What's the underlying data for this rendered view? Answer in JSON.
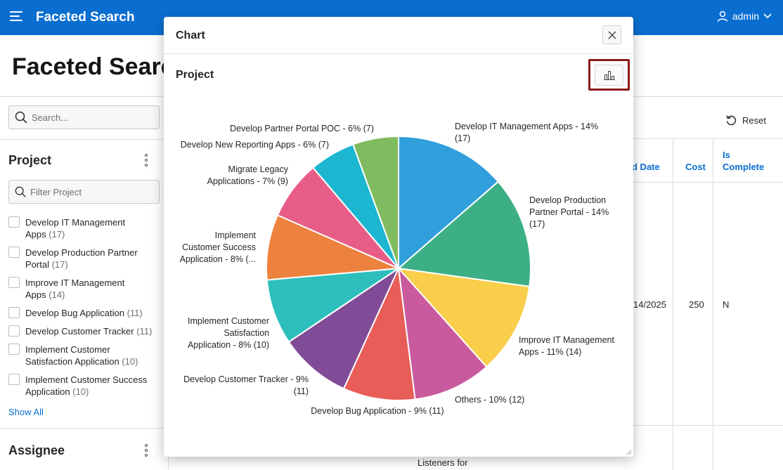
{
  "header": {
    "app_title": "Faceted Search",
    "user": "admin"
  },
  "page": {
    "title": "Faceted Search"
  },
  "search": {
    "placeholder": "Search..."
  },
  "facets": {
    "project": {
      "title": "Project",
      "filter_placeholder": "Filter Project",
      "items": [
        {
          "label": "Develop IT Management Apps",
          "count": "(17)"
        },
        {
          "label": "Develop Production Partner Portal",
          "count": "(17)"
        },
        {
          "label": "Improve IT Management Apps",
          "count": "(14)"
        },
        {
          "label": "Develop Bug Application",
          "count": "(11)"
        },
        {
          "label": "Develop Customer Tracker",
          "count": "(11)"
        },
        {
          "label": "Implement Customer Satisfaction Application",
          "count": "(10)"
        },
        {
          "label": "Implement Customer Success Application",
          "count": "(10)"
        }
      ],
      "show_all": "Show All"
    },
    "assignee": {
      "title": "Assignee"
    }
  },
  "report": {
    "reset_label": "Reset",
    "columns": {
      "end_date_partial": "d Date",
      "cost": "Cost",
      "is_complete_line1": "Is",
      "is_complete_line2": "Complete"
    },
    "row": {
      "end_date_partial": "14/2025",
      "cost": "250",
      "is_complete": "N"
    },
    "bottom_cell_text": "Listeners for"
  },
  "dialog": {
    "title": "Chart",
    "region_title": "Project"
  },
  "icons": {
    "menu": "hamburger-icon",
    "user": "user-icon",
    "chevron": "chevron-down-icon",
    "search": "search-icon",
    "kebab": "kebab-icon",
    "close": "close-icon",
    "chart_type": "bar-chart-icon",
    "reset": "reset-icon"
  },
  "colors": {
    "header": "#0a6ed1",
    "link": "#0a6ed1",
    "highlight_border": "#8b1a1a"
  },
  "chart_data": {
    "type": "pie",
    "slices": [
      {
        "label_lines": [
          "Develop IT Management Apps - 14%",
          "(17)"
        ],
        "value": 17,
        "color": "#309fdb"
      },
      {
        "label_lines": [
          "Develop Production",
          "Partner Portal - 14%",
          "(17)"
        ],
        "value": 17,
        "color": "#3caf85"
      },
      {
        "label_lines": [
          "Improve IT Management",
          "Apps - 11% (14)"
        ],
        "value": 14,
        "color": "#f9ce4a"
      },
      {
        "label_lines": [
          "Others - 10% (12)"
        ],
        "value": 12,
        "color": "#c95a9e"
      },
      {
        "label_lines": [
          "Develop Bug Application - 9% (11)"
        ],
        "value": 11,
        "color": "#e85d57"
      },
      {
        "label_lines": [
          "Develop Customer Tracker - 9%",
          "(11)"
        ],
        "value": 11,
        "color": "#814c97"
      },
      {
        "label_lines": [
          "Implement Customer",
          "Satisfaction",
          "Application - 8% (10)"
        ],
        "value": 10,
        "color": "#2ebfbc"
      },
      {
        "label_lines": [
          "Implement",
          "Customer Success",
          "Application - 8% (..."
        ],
        "value": 10,
        "color": "#ed813e"
      },
      {
        "label_lines": [
          "Migrate Legacy",
          "Applications - 7% (9)"
        ],
        "value": 9,
        "color": "#e85d88"
      },
      {
        "label_lines": [
          "Develop New Reporting Apps - 6% (7)"
        ],
        "value": 7,
        "color": "#1db6d1"
      },
      {
        "label_lines": [
          "Develop Partner Portal POC - 6% (7)"
        ],
        "value": 7,
        "color": "#81bb5f"
      }
    ]
  }
}
